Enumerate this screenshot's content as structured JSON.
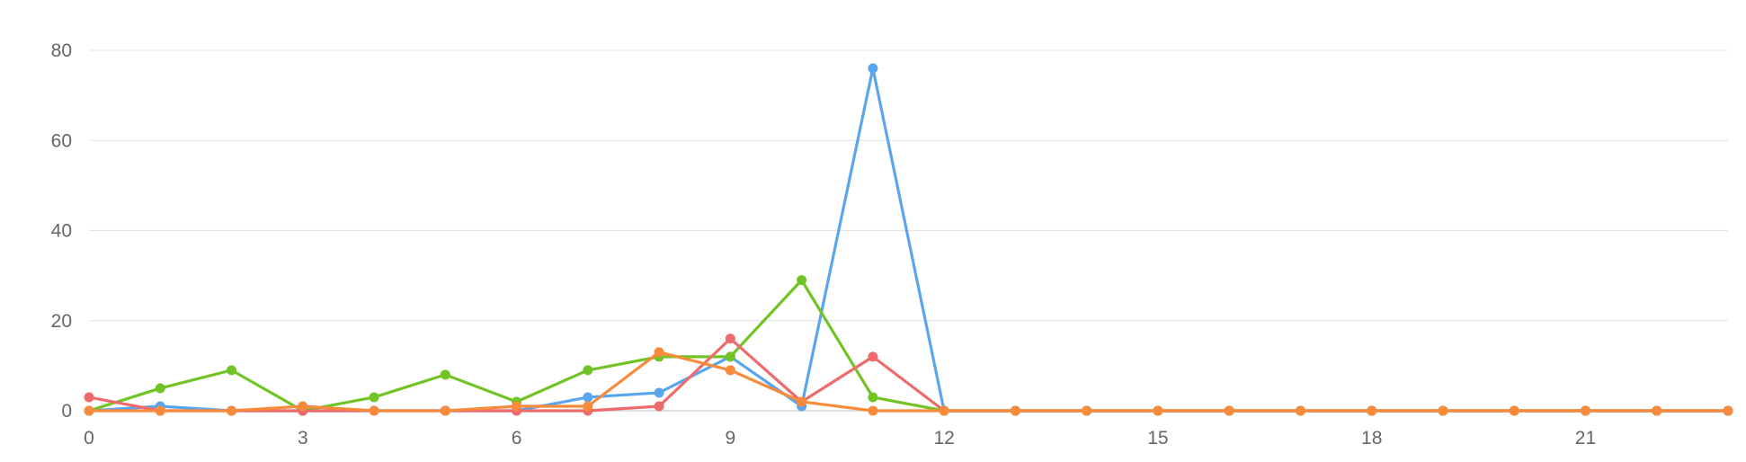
{
  "chart_data": {
    "type": "line",
    "title": "",
    "xlabel": "",
    "ylabel": "",
    "x": [
      0,
      1,
      2,
      3,
      4,
      5,
      6,
      7,
      8,
      9,
      10,
      11,
      12,
      13,
      14,
      15,
      16,
      17,
      18,
      19,
      20,
      21,
      22,
      23
    ],
    "xlim": [
      0,
      23
    ],
    "ylim": [
      0,
      80
    ],
    "x_ticks": [
      0,
      3,
      6,
      9,
      12,
      15,
      18,
      21
    ],
    "x_tick_labels": [
      "0",
      "3",
      "6",
      "9",
      "12",
      "15",
      "18",
      "21"
    ],
    "y_ticks": [
      0,
      20,
      40,
      60,
      80
    ],
    "y_tick_labels": [
      "0",
      "20",
      "40",
      "60",
      "80"
    ],
    "grid": "horizontal",
    "legend": "none",
    "series": [
      {
        "color": "#5aa6ee",
        "values": [
          0,
          1,
          0,
          0,
          0,
          0,
          0,
          3,
          4,
          12,
          1,
          76,
          0,
          0,
          0,
          0,
          0,
          0,
          0,
          0,
          0,
          0,
          0,
          0
        ]
      },
      {
        "color": "#72c426",
        "values": [
          0,
          5,
          9,
          0,
          3,
          8,
          2,
          9,
          12,
          12,
          29,
          3,
          0,
          0,
          0,
          0,
          0,
          0,
          0,
          0,
          0,
          0,
          0,
          0
        ]
      },
      {
        "color": "#ef6b6b",
        "values": [
          3,
          0,
          0,
          0,
          0,
          0,
          0,
          0,
          1,
          16,
          2,
          12,
          0,
          0,
          0,
          0,
          0,
          0,
          0,
          0,
          0,
          0,
          0,
          0
        ]
      },
      {
        "color": "#f88a3b",
        "values": [
          0,
          0,
          0,
          1,
          0,
          0,
          1,
          1,
          13,
          9,
          2,
          0,
          0,
          0,
          0,
          0,
          0,
          0,
          0,
          0,
          0,
          0,
          0,
          0
        ]
      }
    ]
  }
}
